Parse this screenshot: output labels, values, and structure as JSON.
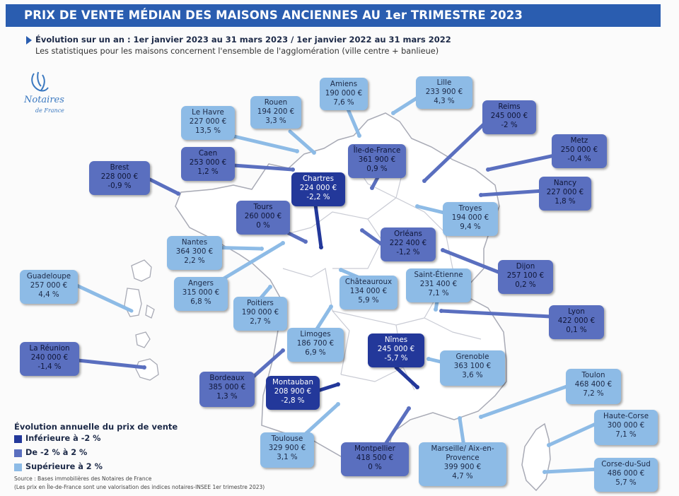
{
  "header": {
    "title": "PRIX DE VENTE MÉDIAN DES MAISONS ANCIENNES AU 1er TRIMESTRE 2023"
  },
  "subtitle": "Évolution sur un an : 1er janvier 2023 au 31 mars 2023 / 1er janvier 2022 au 31 mars 2022",
  "note": "Les statistiques pour les maisons concernent l'ensemble de l'agglomération (ville centre + banlieue)",
  "logo": {
    "name": "Notaires",
    "sub": "de France"
  },
  "colors": {
    "header": "#2a5db0",
    "high": "#8dbbe6",
    "mid": "#5a6fbf",
    "low": "#23389a"
  },
  "cities": [
    {
      "id": "amiens",
      "name": "Amiens",
      "price": "190 000 €",
      "change": "7,6 %",
      "cat": "high"
    },
    {
      "id": "lille",
      "name": "Lille",
      "price": "233 900 €",
      "change": "4,3 %",
      "cat": "high"
    },
    {
      "id": "rouen",
      "name": "Rouen",
      "price": "194 200 €",
      "change": "3,3 %",
      "cat": "high"
    },
    {
      "id": "le-havre",
      "name": "Le Havre",
      "price": "227 000 €",
      "change": "13,5 %",
      "cat": "high"
    },
    {
      "id": "reims",
      "name": "Reims",
      "price": "245 000 €",
      "change": "-2 %",
      "cat": "mid"
    },
    {
      "id": "ile-de-france",
      "name": "Île-de-France",
      "price": "361 900 €",
      "change": "0,9 %",
      "cat": "mid"
    },
    {
      "id": "metz",
      "name": "Metz",
      "price": "250 000 €",
      "change": "-0,4 %",
      "cat": "mid"
    },
    {
      "id": "caen",
      "name": "Caen",
      "price": "253 000 €",
      "change": "1,2 %",
      "cat": "mid"
    },
    {
      "id": "brest",
      "name": "Brest",
      "price": "228 000 €",
      "change": "-0,9 %",
      "cat": "mid"
    },
    {
      "id": "chartres",
      "name": "Chartres",
      "price": "224 000 €",
      "change": "-2,2 %",
      "cat": "low"
    },
    {
      "id": "nancy",
      "name": "Nancy",
      "price": "227 000 €",
      "change": "1,8 %",
      "cat": "mid"
    },
    {
      "id": "tours",
      "name": "Tours",
      "price": "260 000 €",
      "change": "0 %",
      "cat": "mid"
    },
    {
      "id": "troyes",
      "name": "Troyes",
      "price": "194 000 €",
      "change": "9,4 %",
      "cat": "high"
    },
    {
      "id": "orleans",
      "name": "Orléans",
      "price": "222 400 €",
      "change": "-1,2 %",
      "cat": "mid"
    },
    {
      "id": "nantes",
      "name": "Nantes",
      "price": "364 300 €",
      "change": "2,2 %",
      "cat": "high"
    },
    {
      "id": "dijon",
      "name": "Dijon",
      "price": "257 100 €",
      "change": "0,2 %",
      "cat": "mid"
    },
    {
      "id": "guadeloupe",
      "name": "Guadeloupe",
      "price": "257 000 €",
      "change": "4,4 %",
      "cat": "high"
    },
    {
      "id": "angers",
      "name": "Angers",
      "price": "315 000 €",
      "change": "6,8 %",
      "cat": "high"
    },
    {
      "id": "chateauroux",
      "name": "Châteauroux",
      "price": "134 000 €",
      "change": "5,9 %",
      "cat": "high"
    },
    {
      "id": "saint-etienne",
      "name": "Saint-Étienne",
      "price": "231 400 €",
      "change": "7,1 %",
      "cat": "high"
    },
    {
      "id": "poitiers",
      "name": "Poitiers",
      "price": "190 000 €",
      "change": "2,7 %",
      "cat": "high"
    },
    {
      "id": "lyon",
      "name": "Lyon",
      "price": "422 000 €",
      "change": "0,1 %",
      "cat": "mid"
    },
    {
      "id": "limoges",
      "name": "Limoges",
      "price": "186 700 €",
      "change": "6,9 %",
      "cat": "high"
    },
    {
      "id": "nimes",
      "name": "Nîmes",
      "price": "245 000 €",
      "change": "-5,7 %",
      "cat": "low"
    },
    {
      "id": "la-reunion",
      "name": "La Réunion",
      "price": "240 000 €",
      "change": "-1,4 %",
      "cat": "mid"
    },
    {
      "id": "grenoble",
      "name": "Grenoble",
      "price": "363 100 €",
      "change": "3,6 %",
      "cat": "high"
    },
    {
      "id": "bordeaux",
      "name": "Bordeaux",
      "price": "385 000 €",
      "change": "1,3 %",
      "cat": "mid"
    },
    {
      "id": "montauban",
      "name": "Montauban",
      "price": "208 900 €",
      "change": "-2,8 %",
      "cat": "low"
    },
    {
      "id": "toulon",
      "name": "Toulon",
      "price": "468 400 €",
      "change": "7,2 %",
      "cat": "high"
    },
    {
      "id": "haute-corse",
      "name": "Haute-Corse",
      "price": "300 000 €",
      "change": "7,1 %",
      "cat": "high"
    },
    {
      "id": "toulouse",
      "name": "Toulouse",
      "price": "329 900 €",
      "change": "3,1 %",
      "cat": "high"
    },
    {
      "id": "montpellier",
      "name": "Montpellier",
      "price": "418 500 €",
      "change": "0 %",
      "cat": "mid"
    },
    {
      "id": "marseille",
      "name": "Marseille/ Aix-en-Provence",
      "price": "399 900 €",
      "change": "4,7 %",
      "cat": "high"
    },
    {
      "id": "corse-du-sud",
      "name": "Corse-du-Sud",
      "price": "486 000 €",
      "change": "5,7 %",
      "cat": "high"
    }
  ],
  "legend": {
    "title": "Évolution annuelle du prix de vente",
    "items": [
      {
        "label": "Inférieure à -2 %",
        "color": "#23389a"
      },
      {
        "label": "De -2 % à 2 %",
        "color": "#5a6fbf"
      },
      {
        "label": "Supérieure à 2 %",
        "color": "#8dbbe6"
      }
    ]
  },
  "source": {
    "line1": "Source : Bases immobilières des Notaires de France",
    "line2": "(Les prix en Île-de-France sont une valorisation des indices notaires-INSEE 1er trimestre 2023)"
  }
}
